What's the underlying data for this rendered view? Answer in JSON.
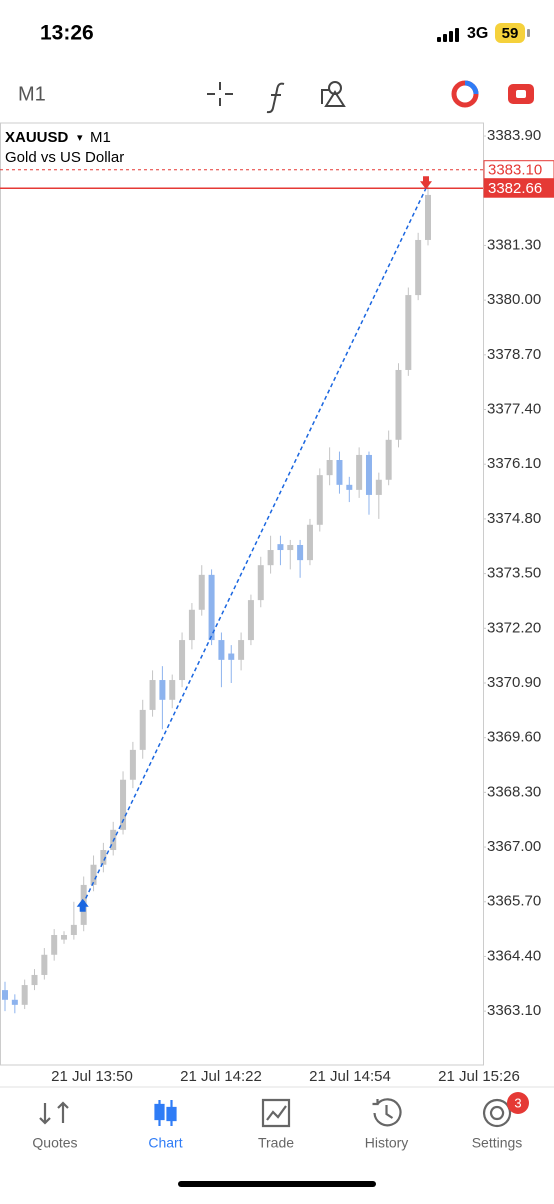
{
  "status_bar": {
    "time": "13:26",
    "network": "3G",
    "battery": "59"
  },
  "toolbar": {
    "timeframe": "M1"
  },
  "chart_data": {
    "type": "candlestick",
    "symbol": "XAUUSD",
    "dropdown": "▾",
    "timeframe": "M1",
    "subtitle": "Gold vs US Dollar",
    "up_color": "#c4c4c4",
    "down_color": "#8db3ee",
    "ylim": [
      3361.82,
      3384.21
    ],
    "yticks": [
      {
        "value": 3383.9,
        "label": "3383.90"
      },
      {
        "value": 3381.3,
        "label": "3381.30"
      },
      {
        "value": 3380,
        "label": "3380.00"
      },
      {
        "value": 3378.7,
        "label": "3378.70"
      },
      {
        "value": 3377.4,
        "label": "3377.40"
      },
      {
        "value": 3376.1,
        "label": "3376.10"
      },
      {
        "value": 3374.8,
        "label": "3374.80"
      },
      {
        "value": 3373.5,
        "label": "3373.50"
      },
      {
        "value": 3372.2,
        "label": "3372.20"
      },
      {
        "value": 3370.9,
        "label": "3370.90"
      },
      {
        "value": 3369.6,
        "label": "3369.60"
      },
      {
        "value": 3368.3,
        "label": "3368.30"
      },
      {
        "value": 3367,
        "label": "3367.00"
      },
      {
        "value": 3365.7,
        "label": "3365.70"
      },
      {
        "value": 3364.4,
        "label": "3364.40"
      },
      {
        "value": 3363.1,
        "label": "3363.10"
      }
    ],
    "xticks": [
      "21 Jul 13:50",
      "21 Jul 14:22",
      "21 Jul 14:54",
      "21 Jul 15:26"
    ],
    "price_lines": [
      {
        "value": 3383.1,
        "label": "3383.10",
        "color": "#e53935",
        "style": "dashed"
      },
      {
        "value": 3382.66,
        "label": "3382.66",
        "color": "#e53935",
        "style": "solid"
      }
    ],
    "trade": {
      "entry": 3365.63,
      "exit": 3382.66,
      "line_color": "#1a66e0"
    },
    "candles": [
      [
        3363.6,
        3363.8,
        3363.1,
        3363.37
      ],
      [
        3363.37,
        3363.5,
        3363.05,
        3363.25
      ],
      [
        3363.25,
        3363.85,
        3363.15,
        3363.72
      ],
      [
        3363.72,
        3364.1,
        3363.6,
        3363.96
      ],
      [
        3363.96,
        3364.6,
        3363.85,
        3364.44
      ],
      [
        3364.44,
        3365.05,
        3364.3,
        3364.91
      ],
      [
        3364.8,
        3365.0,
        3364.7,
        3364.91
      ],
      [
        3364.91,
        3365.7,
        3364.8,
        3365.15
      ],
      [
        3365.15,
        3366.3,
        3365.0,
        3366.1
      ],
      [
        3366.1,
        3366.8,
        3365.95,
        3366.58
      ],
      [
        3366.58,
        3367.1,
        3366.4,
        3366.93
      ],
      [
        3366.93,
        3367.6,
        3366.8,
        3367.41
      ],
      [
        3367.41,
        3368.8,
        3367.3,
        3368.6
      ],
      [
        3368.6,
        3369.5,
        3368.4,
        3369.31
      ],
      [
        3369.31,
        3370.5,
        3369.1,
        3370.26
      ],
      [
        3370.26,
        3371.2,
        3370.1,
        3370.97
      ],
      [
        3370.97,
        3371.3,
        3369.8,
        3370.5
      ],
      [
        3370.5,
        3371.1,
        3370.3,
        3370.97
      ],
      [
        3370.97,
        3372.1,
        3370.8,
        3371.92
      ],
      [
        3371.92,
        3372.8,
        3371.7,
        3372.64
      ],
      [
        3372.64,
        3373.7,
        3372.5,
        3373.47
      ],
      [
        3373.47,
        3373.6,
        3371.8,
        3371.92
      ],
      [
        3371.92,
        3372.1,
        3370.8,
        3371.45
      ],
      [
        3371.6,
        3371.8,
        3370.9,
        3371.45
      ],
      [
        3371.45,
        3372.1,
        3371.2,
        3371.92
      ],
      [
        3371.92,
        3373.0,
        3371.8,
        3372.87
      ],
      [
        3372.87,
        3373.9,
        3372.7,
        3373.7
      ],
      [
        3373.7,
        3374.4,
        3373.5,
        3374.06
      ],
      [
        3374.2,
        3374.4,
        3373.7,
        3374.06
      ],
      [
        3374.06,
        3374.3,
        3373.6,
        3374.18
      ],
      [
        3374.18,
        3374.3,
        3373.4,
        3373.82
      ],
      [
        3373.82,
        3374.8,
        3373.7,
        3374.66
      ],
      [
        3374.66,
        3376.0,
        3374.5,
        3375.84
      ],
      [
        3375.84,
        3376.5,
        3375.6,
        3376.2
      ],
      [
        3376.2,
        3376.4,
        3375.4,
        3375.61
      ],
      [
        3375.61,
        3375.8,
        3375.2,
        3375.49
      ],
      [
        3375.49,
        3376.5,
        3375.3,
        3376.32
      ],
      [
        3376.32,
        3376.4,
        3374.9,
        3375.37
      ],
      [
        3375.37,
        3375.9,
        3374.8,
        3375.73
      ],
      [
        3375.73,
        3376.9,
        3375.6,
        3376.68
      ],
      [
        3376.68,
        3378.5,
        3376.5,
        3378.34
      ],
      [
        3378.34,
        3380.3,
        3378.2,
        3380.12
      ],
      [
        3380.12,
        3381.6,
        3380.0,
        3381.43
      ],
      [
        3381.43,
        3382.9,
        3381.3,
        3382.5
      ]
    ]
  },
  "tabs": [
    {
      "label": "Quotes"
    },
    {
      "label": "Chart",
      "active": true
    },
    {
      "label": "Trade"
    },
    {
      "label": "History"
    },
    {
      "label": "Settings",
      "badge": "3"
    }
  ]
}
